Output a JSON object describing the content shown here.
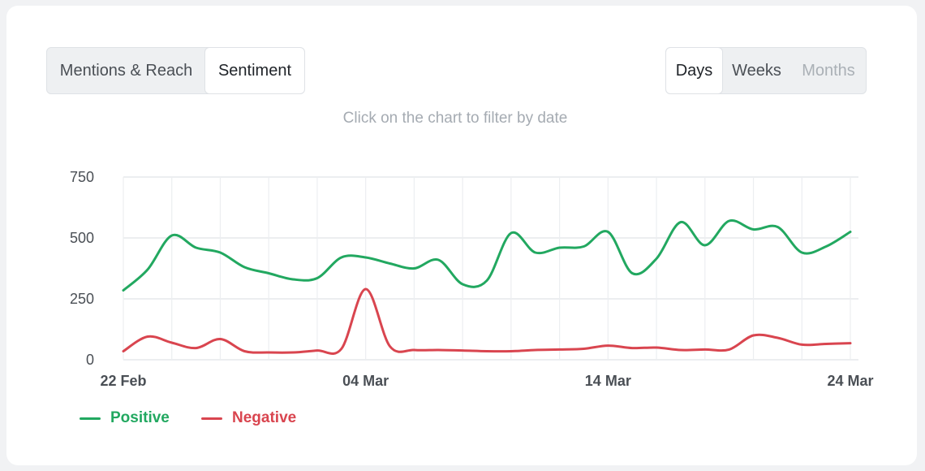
{
  "tabs": [
    {
      "label": "Mentions & Reach",
      "active": false
    },
    {
      "label": "Sentiment",
      "active": true
    }
  ],
  "periods": [
    {
      "label": "Days",
      "active": true,
      "disabled": false
    },
    {
      "label": "Weeks",
      "active": false,
      "disabled": false
    },
    {
      "label": "Months",
      "active": false,
      "disabled": true
    }
  ],
  "hint": "Click on the chart to filter by date",
  "chart_data": {
    "type": "line",
    "x_start": "22 Feb",
    "x_end": "24 Mar",
    "x_ticks": [
      {
        "label": "22 Feb",
        "index": 0
      },
      {
        "label": "04 Mar",
        "index": 10
      },
      {
        "label": "14 Mar",
        "index": 20
      },
      {
        "label": "24 Mar",
        "index": 30
      }
    ],
    "ylim": [
      0,
      750
    ],
    "y_ticks": [
      0,
      250,
      500,
      750
    ],
    "grid": true,
    "legend_position": "bottom-left",
    "series": [
      {
        "name": "Positive",
        "color": "#22a860",
        "values": [
          285,
          370,
          510,
          460,
          440,
          380,
          355,
          330,
          335,
          420,
          420,
          395,
          375,
          410,
          310,
          325,
          520,
          440,
          460,
          465,
          525,
          355,
          415,
          565,
          470,
          570,
          535,
          545,
          440,
          465,
          525
        ]
      },
      {
        "name": "Negative",
        "color": "#d9454f",
        "values": [
          35,
          95,
          70,
          48,
          85,
          35,
          30,
          30,
          38,
          45,
          290,
          55,
          40,
          40,
          38,
          35,
          35,
          40,
          42,
          45,
          58,
          48,
          50,
          40,
          42,
          42,
          100,
          90,
          62,
          65,
          68
        ]
      }
    ]
  }
}
